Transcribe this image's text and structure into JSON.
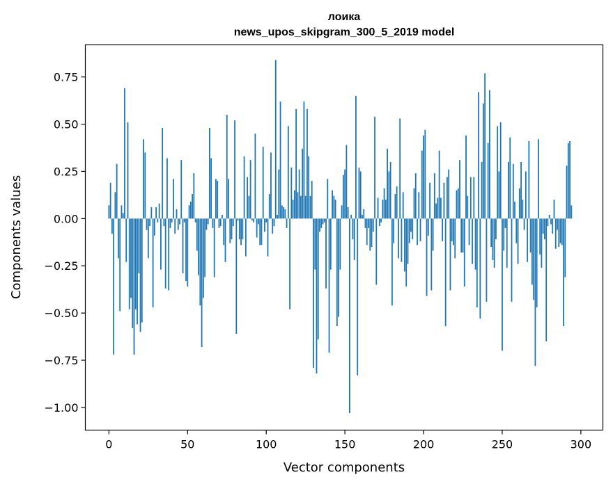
{
  "chart_data": {
    "type": "bar",
    "title": "лоика",
    "subtitle": "news_upos_skipgram_300_5_2019 model",
    "xlabel": "Vector components",
    "ylabel": "Components values",
    "xlim": [
      -15,
      314
    ],
    "ylim": [
      -1.12,
      0.92
    ],
    "xticks": [
      0,
      50,
      100,
      150,
      200,
      250,
      300
    ],
    "xtick_labels": [
      "0",
      "50",
      "100",
      "150",
      "200",
      "250",
      "300"
    ],
    "yticks": [
      0.75,
      0.5,
      0.25,
      0.0,
      -0.25,
      -0.5,
      -0.75,
      -1.0
    ],
    "ytick_labels": [
      "0.75",
      "0.50",
      "0.25",
      "0.00",
      "−0.25",
      "−0.50",
      "−0.75",
      "−1.00"
    ],
    "bar_color": "#1f77b4",
    "values": [
      0.07,
      0.19,
      -0.08,
      -0.72,
      0.14,
      0.29,
      -0.21,
      -0.49,
      0.07,
      0.03,
      0.69,
      -0.23,
      0.51,
      -0.48,
      -0.42,
      -0.58,
      -0.72,
      -0.48,
      -0.56,
      -0.29,
      -0.6,
      -0.55,
      0.42,
      0.35,
      -0.06,
      -0.21,
      -0.04,
      0.06,
      -0.47,
      -0.09,
      0.06,
      -0.02,
      0.08,
      -0.27,
      0.48,
      -0.04,
      -0.37,
      0.32,
      -0.38,
      -0.05,
      -0.02,
      0.21,
      -0.08,
      0.05,
      -0.06,
      -0.03,
      0.31,
      -0.29,
      -0.02,
      -0.33,
      -0.36,
      0.07,
      0.09,
      0.13,
      0.24,
      -0.02,
      -0.17,
      -0.3,
      -0.46,
      -0.68,
      -0.42,
      -0.31,
      -0.06,
      -0.03,
      0.48,
      0.32,
      -0.05,
      -0.31,
      0.21,
      0.2,
      -0.05,
      -0.04,
      0.02,
      -0.14,
      -0.23,
      0.55,
      0.21,
      -0.13,
      -0.11,
      -0.04,
      0.52,
      -0.61,
      -0.01,
      -0.11,
      -0.14,
      -0.11,
      0.33,
      -0.2,
      0.22,
      0.12,
      0.31,
      -0.01,
      -0.02,
      0.45,
      -0.1,
      -0.03,
      -0.14,
      -0.14,
      0.38,
      -0.07,
      -0.02,
      -0.2,
      0.13,
      0.35,
      -0.08,
      -0.04,
      0.84,
      0.02,
      0.26,
      0.62,
      0.07,
      0.06,
      0.05,
      -0.05,
      0.49,
      -0.48,
      0.27,
      0.1,
      0.15,
      0.58,
      0.14,
      0.26,
      0.12,
      0.37,
      0.62,
      0.12,
      0.58,
      0.33,
      0.12,
      0.2,
      -0.79,
      -0.27,
      -0.82,
      -0.64,
      -0.07,
      -0.05,
      -0.03,
      -0.02,
      -0.37,
      0.21,
      -0.71,
      -0.27,
      0.15,
      0.12,
      0.1,
      -0.57,
      -0.52,
      -0.27,
      0.07,
      0.23,
      0.26,
      0.39,
      0.06,
      -1.03,
      0.02,
      -0.11,
      -0.22,
      0.65,
      -0.83,
      0.27,
      0.25,
      0.02,
      0.05,
      -0.05,
      -0.14,
      -0.05,
      -0.17,
      -0.15,
      -0.07,
      0.54,
      -0.35,
      0.11,
      -0.04,
      -0.02,
      0.1,
      0.16,
      0.1,
      0.37,
      0.25,
      0.3,
      -0.46,
      -0.13,
      0.13,
      0.17,
      -0.21,
      0.53,
      -0.23,
      0.14,
      -0.28,
      -0.36,
      -0.24,
      -0.13,
      -0.07,
      -0.11,
      0.16,
      0.24,
      -0.14,
      0.14,
      -0.12,
      0.36,
      0.44,
      0.47,
      -0.41,
      -0.09,
      0.19,
      -0.38,
      -0.17,
      0.24,
      0.08,
      0.11,
      0.36,
      0.11,
      -0.12,
      0.19,
      -0.57,
      0.22,
      0.26,
      -0.38,
      -0.12,
      -0.14,
      -0.21,
      0.15,
      0.16,
      0.31,
      -0.18,
      -0.18,
      -0.36,
      0.44,
      0.12,
      -0.14,
      0.22,
      -0.24,
      0.22,
      -0.27,
      -0.47,
      0.67,
      -0.53,
      0.3,
      0.61,
      0.77,
      -0.44,
      0.4,
      0.68,
      -0.15,
      -0.22,
      -0.26,
      -0.11,
      0.49,
      0.25,
      0.51,
      -0.7,
      -0.17,
      -0.05,
      -0.26,
      0.3,
      0.43,
      -0.44,
      0.29,
      0.09,
      -0.13,
      -0.24,
      0.16,
      0.3,
      0.1,
      -0.06,
      0.25,
      -0.23,
      0.41,
      -0.18,
      -0.35,
      -0.43,
      -0.78,
      -0.47,
      0.42,
      -0.19,
      -0.26,
      -0.08,
      -0.11,
      -0.65,
      -0.04,
      0.02,
      -0.03,
      -0.08,
      0.1,
      -0.16,
      -0.06,
      -0.15,
      -0.13,
      -0.14,
      -0.57,
      -0.31,
      0.28,
      0.4,
      0.41,
      0.07
    ]
  }
}
